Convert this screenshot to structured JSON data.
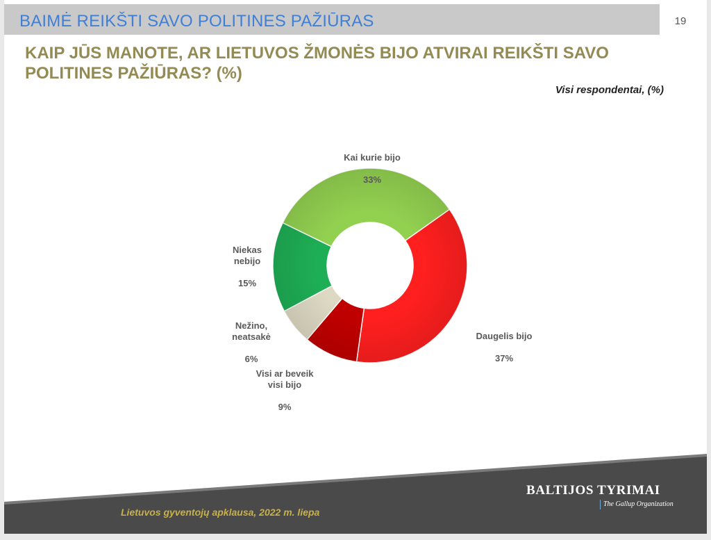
{
  "header": {
    "title": "BAIMĖ REIKŠTI SAVO POLITINES PAŽIŪRAS",
    "page_number": "19"
  },
  "question": "KAIP JŪS MANOTE, AR LIETUVOS ŽMONĖS BIJO ATVIRAI REIKŠTI SAVO POLITINES PAŽIŪRAS? (%)",
  "respondents_note": "Visi respondentai, (%)",
  "chart_data": {
    "type": "pie",
    "donut": true,
    "slices": [
      {
        "label": "Kai kurie bijo",
        "value": 33,
        "display": "33%",
        "color": "#92d050"
      },
      {
        "label": "Daugelis bijo",
        "value": 37,
        "display": "37%",
        "color": "#ff1f1f"
      },
      {
        "label": "Visi ar beveik visi bijo",
        "value": 9,
        "display": "9%",
        "color": "#c00000"
      },
      {
        "label": "Nežino, neatsakė",
        "value": 6,
        "display": "6%",
        "color": "#ddd9c3"
      },
      {
        "label": "Niekas nebijo",
        "value": 15,
        "display": "15%",
        "color": "#1eae55"
      }
    ]
  },
  "footer": {
    "survey": "Lietuvos gyventojų apklausa, 2022 m. liepa",
    "logo_main": "BALTIJOS TYRIMAI",
    "logo_sub": "The Gallup Organization"
  }
}
